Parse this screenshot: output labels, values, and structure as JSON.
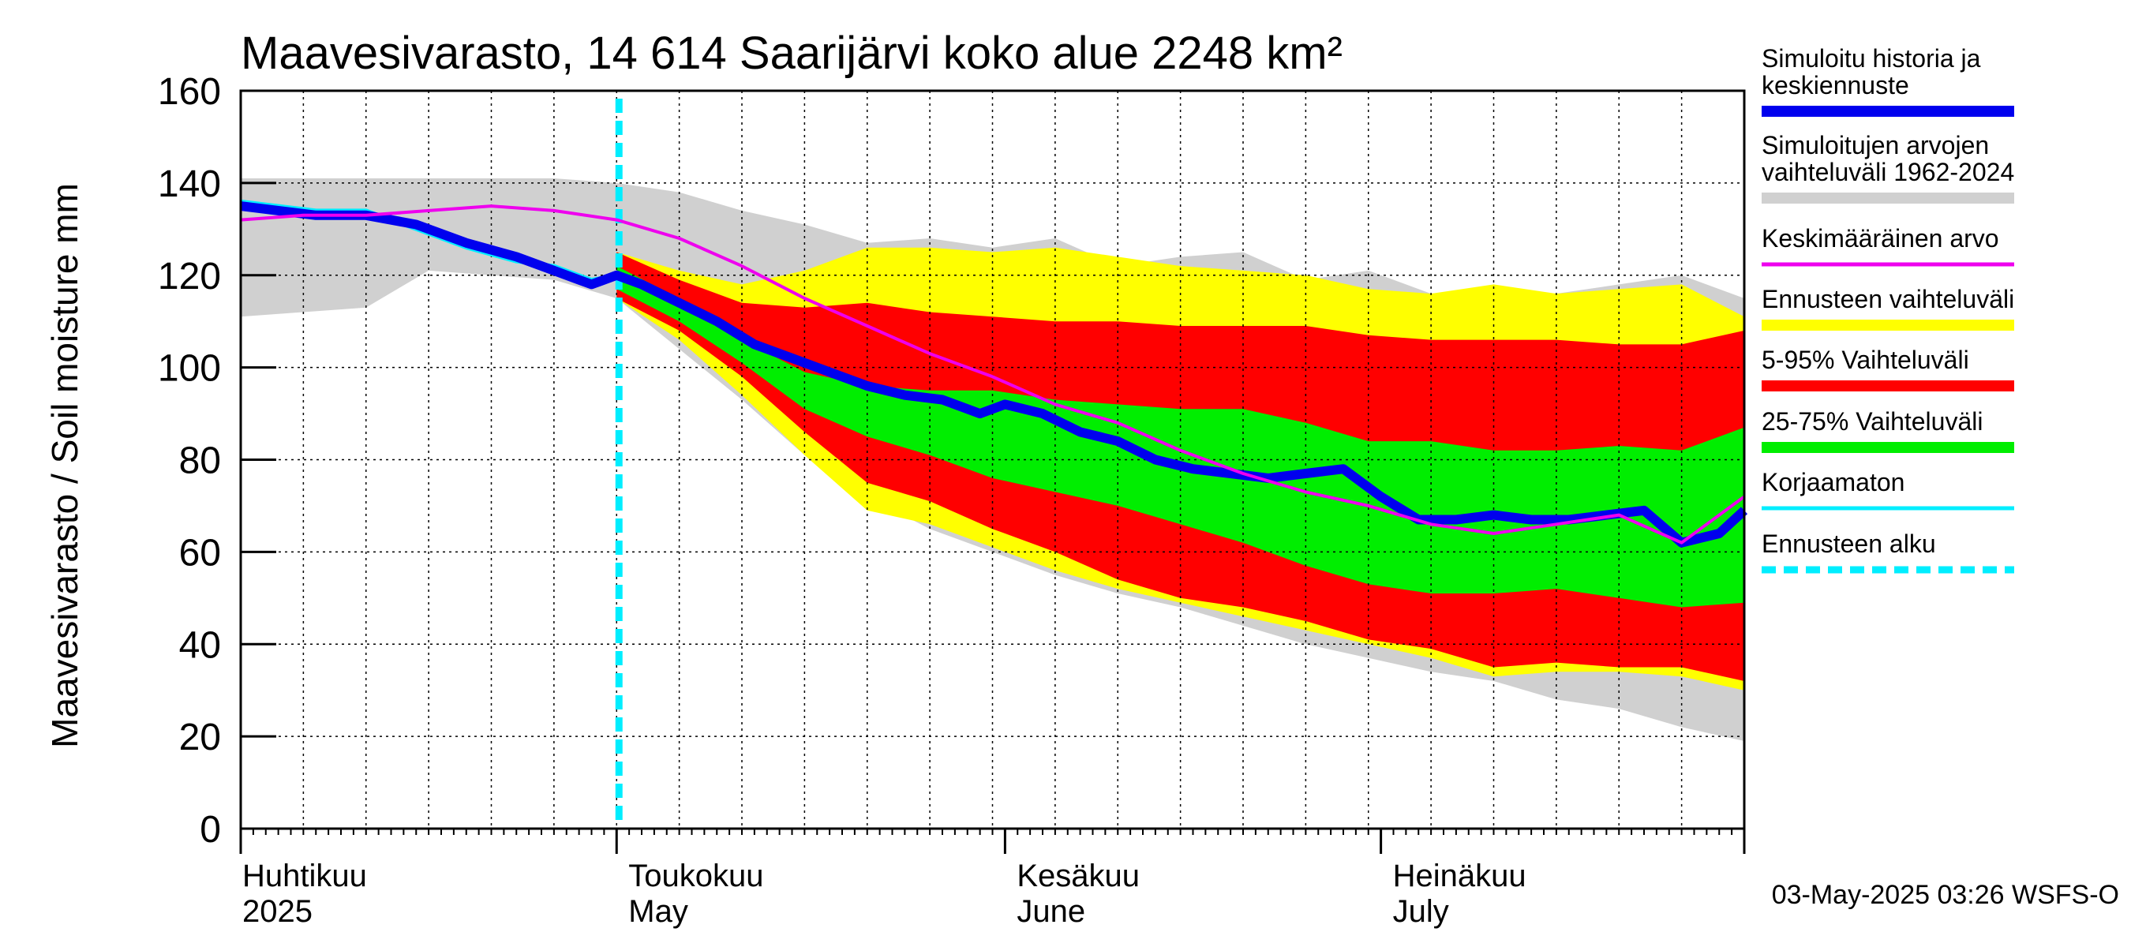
{
  "chart_data": {
    "type": "area",
    "title": "Maavesivarasto, 14 614 Saarijärvi koko alue 2248 km²",
    "ylabel": "Maavesivarasto / Soil moisture   mm",
    "ylim": [
      0,
      160
    ],
    "yticks": [
      0,
      20,
      40,
      60,
      80,
      100,
      120,
      140,
      160
    ],
    "xlim_days": [
      0,
      120
    ],
    "start_date": "2025-04-01",
    "forecast_start_day": 30,
    "month_labels": [
      {
        "fi": "Huhtikuu",
        "en": "2025",
        "day": 0
      },
      {
        "fi": "Toukokuu",
        "en": "May",
        "day": 30
      },
      {
        "fi": "Kesäkuu",
        "en": "June",
        "day": 61
      },
      {
        "fi": "Heinäkuu",
        "en": "July",
        "day": 91
      }
    ],
    "legend": [
      {
        "label": "Simuloitu historia ja keskiennuste",
        "color": "#0000ee"
      },
      {
        "label": "Simuloitujen arvojen vaihteluväli 1962-2024",
        "color": "#d0d0d0"
      },
      {
        "label": "Keskimääräinen arvo",
        "color": "#ee00ee"
      },
      {
        "label": "Ennusteen vaihteluväli",
        "color": "#ffff00"
      },
      {
        "label": "5-95% Vaihteluväli",
        "color": "#ff0000"
      },
      {
        "label": "25-75% Vaihteluväli",
        "color": "#00ee00"
      },
      {
        "label": "Korjaamaton",
        "color": "#00eeff"
      },
      {
        "label": "Ennusteen alku",
        "color": "#00eeff"
      }
    ],
    "series": {
      "hist_range": {
        "name": "Simuloitujen arvojen vaihteluväli 1962-2024",
        "x": [
          0,
          5,
          10,
          15,
          20,
          25,
          30,
          35,
          40,
          45,
          50,
          55,
          60,
          65,
          70,
          75,
          80,
          85,
          90,
          95,
          100,
          105,
          110,
          115,
          120
        ],
        "high": [
          141,
          141,
          141,
          141,
          141,
          141,
          140,
          138,
          134,
          131,
          127,
          128,
          126,
          128,
          122,
          124,
          125,
          119,
          121,
          116,
          114,
          116,
          118,
          120,
          115
        ],
        "low": [
          111,
          112,
          113,
          121,
          120,
          119,
          115,
          104,
          93,
          81,
          72,
          65,
          60,
          55,
          51,
          48,
          44,
          40,
          37,
          34,
          32,
          28,
          26,
          22,
          19
        ]
      },
      "fc_range": {
        "name": "Ennusteen vaihteluväli",
        "x": [
          30,
          35,
          40,
          45,
          50,
          55,
          60,
          65,
          70,
          75,
          80,
          85,
          90,
          95,
          100,
          105,
          110,
          115,
          120
        ],
        "high": [
          125,
          121,
          118,
          121,
          126,
          126,
          125,
          126,
          124,
          122,
          121,
          120,
          117,
          116,
          118,
          116,
          117,
          118,
          111
        ],
        "low": [
          115,
          106,
          94,
          81,
          69,
          66,
          61,
          56,
          52,
          49,
          46,
          43,
          40,
          37,
          33,
          34,
          34,
          33,
          30
        ]
      },
      "p5_95": {
        "name": "5-95% Vaihteluväli",
        "x": [
          30,
          35,
          40,
          45,
          50,
          55,
          60,
          65,
          70,
          75,
          80,
          85,
          90,
          95,
          100,
          105,
          110,
          115,
          120
        ],
        "high": [
          125,
          119,
          114,
          113,
          114,
          112,
          111,
          110,
          110,
          109,
          109,
          109,
          107,
          106,
          106,
          106,
          105,
          105,
          108
        ],
        "low": [
          115,
          108,
          98,
          86,
          75,
          71,
          65,
          60,
          54,
          50,
          48,
          45,
          41,
          39,
          35,
          36,
          35,
          35,
          32
        ]
      },
      "p25_75": {
        "name": "25-75% Vaihteluväli",
        "x": [
          30,
          35,
          40,
          45,
          50,
          55,
          60,
          65,
          70,
          75,
          80,
          85,
          90,
          95,
          100,
          105,
          110,
          115,
          120
        ],
        "high": [
          122,
          115,
          106,
          99,
          96,
          95,
          95,
          93,
          92,
          91,
          91,
          88,
          84,
          84,
          82,
          82,
          83,
          82,
          87
        ],
        "low": [
          117,
          110,
          101,
          91,
          85,
          81,
          76,
          73,
          70,
          66,
          62,
          57,
          53,
          51,
          51,
          52,
          50,
          48,
          49
        ]
      },
      "median": {
        "name": "Simuloitu historia ja keskiennuste",
        "x": [
          0,
          3,
          6,
          10,
          14,
          18,
          22,
          25,
          27,
          28,
          30,
          32,
          35,
          38,
          41,
          44,
          47,
          50,
          53,
          56,
          59,
          61,
          64,
          67,
          70,
          73,
          76,
          79,
          82,
          85,
          88,
          91,
          94,
          97,
          100,
          103,
          106,
          109,
          112,
          115,
          118,
          120
        ],
        "y": [
          135,
          134,
          133,
          133,
          131,
          127,
          124,
          121,
          119,
          118,
          120,
          118,
          114,
          110,
          105,
          102,
          99,
          96,
          94,
          93,
          90,
          92,
          90,
          86,
          84,
          80,
          78,
          77,
          76,
          77,
          78,
          72,
          67,
          67,
          68,
          67,
          67,
          68,
          69,
          62,
          64,
          69
        ]
      },
      "uncorrected": {
        "name": "Korjaamaton",
        "x": [
          0,
          3,
          6,
          10,
          14,
          18,
          22,
          25,
          27,
          28,
          30
        ],
        "y": [
          136,
          135,
          134,
          134,
          130,
          126,
          123,
          122,
          120,
          119,
          120
        ]
      },
      "mean": {
        "name": "Keskimääräinen arvo",
        "x": [
          0,
          5,
          10,
          15,
          20,
          25,
          30,
          35,
          40,
          45,
          50,
          55,
          60,
          65,
          70,
          75,
          80,
          85,
          90,
          95,
          100,
          105,
          110,
          115,
          120
        ],
        "y": [
          132,
          133,
          133,
          134,
          135,
          134,
          132,
          128,
          122,
          115,
          109,
          103,
          98,
          92,
          88,
          82,
          77,
          73,
          70,
          66,
          64,
          66,
          68,
          62,
          72
        ]
      }
    }
  },
  "footer": "03-May-2025 03:26 WSFS-O"
}
